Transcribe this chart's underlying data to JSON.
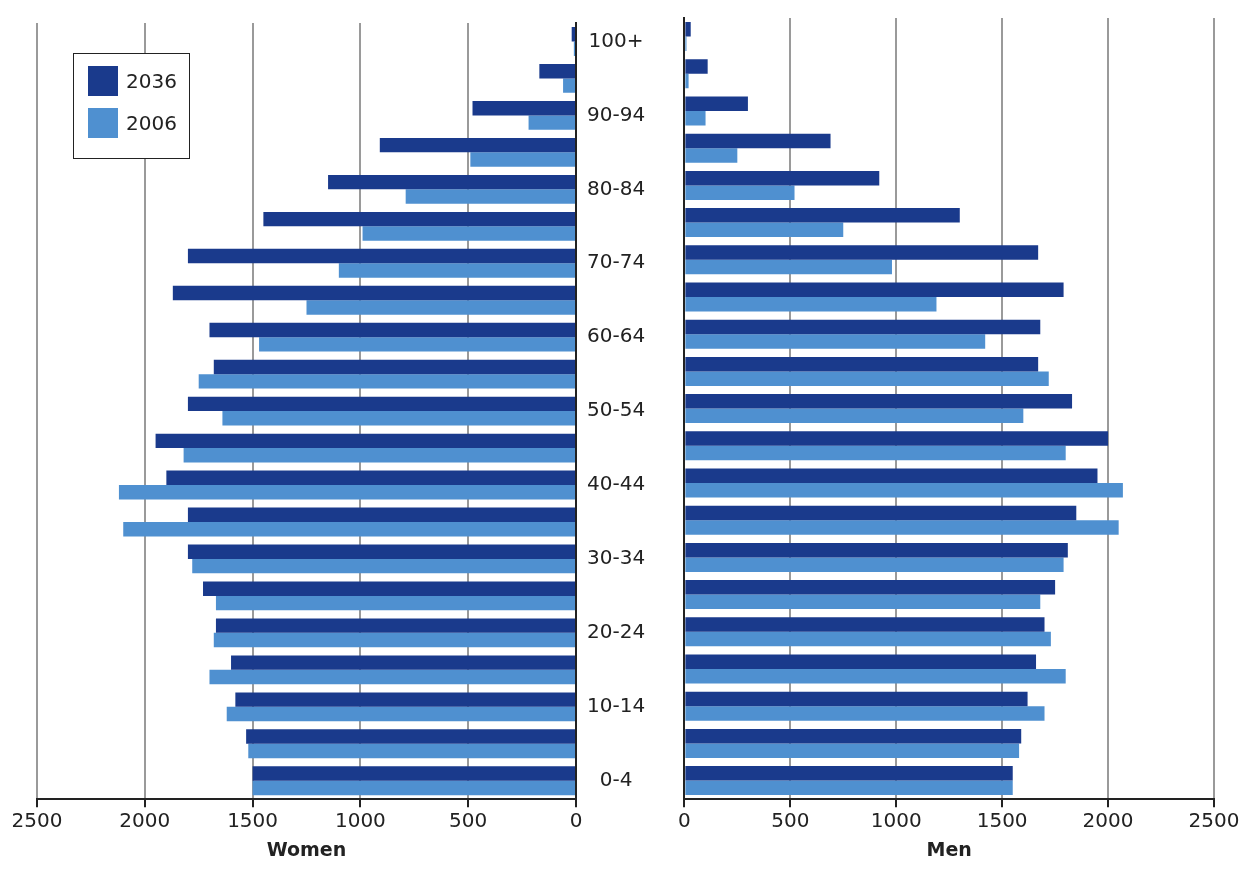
{
  "chart_data": [
    {
      "type": "bar",
      "orientation": "horizontal",
      "xlabel": "Women",
      "categories": [
        "100+",
        null,
        "90-94",
        null,
        "80-84",
        null,
        "70-74",
        null,
        "60-64",
        null,
        "50-54",
        null,
        "40-44",
        null,
        "30-34",
        null,
        "20-24",
        null,
        "10-14",
        null,
        "0-4"
      ],
      "series": [
        {
          "name": "2036",
          "color": "#1a3a8c",
          "values": [
            20,
            170,
            480,
            910,
            1150,
            1450,
            1800,
            1870,
            1700,
            1680,
            1800,
            1950,
            1900,
            1800,
            1800,
            1730,
            1670,
            1600,
            1580,
            1530,
            1500
          ]
        },
        {
          "name": "2006",
          "color": "#4f90d0",
          "values": [
            10,
            60,
            220,
            490,
            790,
            990,
            1100,
            1250,
            1470,
            1750,
            1640,
            1820,
            2120,
            2100,
            1780,
            1670,
            1680,
            1700,
            1620,
            1520,
            1500
          ]
        }
      ],
      "xlim": [
        2500,
        0
      ],
      "xticks": [
        2500,
        2000,
        1500,
        1000,
        500,
        0
      ],
      "grid": "x",
      "legend": "top left"
    },
    {
      "type": "bar",
      "orientation": "horizontal",
      "xlabel": "Men",
      "categories": [
        null,
        null,
        null,
        null,
        null,
        null,
        null,
        null,
        null,
        null,
        null,
        null,
        null,
        null,
        null,
        null,
        null,
        null,
        null,
        null,
        null
      ],
      "series": [
        {
          "name": "2036",
          "color": "#1a3a8c",
          "values": [
            30,
            110,
            300,
            690,
            920,
            1300,
            1670,
            1790,
            1680,
            1670,
            1830,
            2000,
            1950,
            1850,
            1810,
            1750,
            1700,
            1660,
            1620,
            1590,
            1550
          ]
        },
        {
          "name": "2006",
          "color": "#4f90d0",
          "values": [
            10,
            20,
            100,
            250,
            520,
            750,
            980,
            1190,
            1420,
            1720,
            1600,
            1800,
            2070,
            2050,
            1790,
            1680,
            1730,
            1800,
            1700,
            1580,
            1550
          ]
        }
      ],
      "xlim": [
        0,
        2500
      ],
      "xticks": [
        0,
        500,
        1000,
        1500,
        2000,
        2500
      ],
      "grid": "x",
      "tick_labels": "x"
    }
  ]
}
